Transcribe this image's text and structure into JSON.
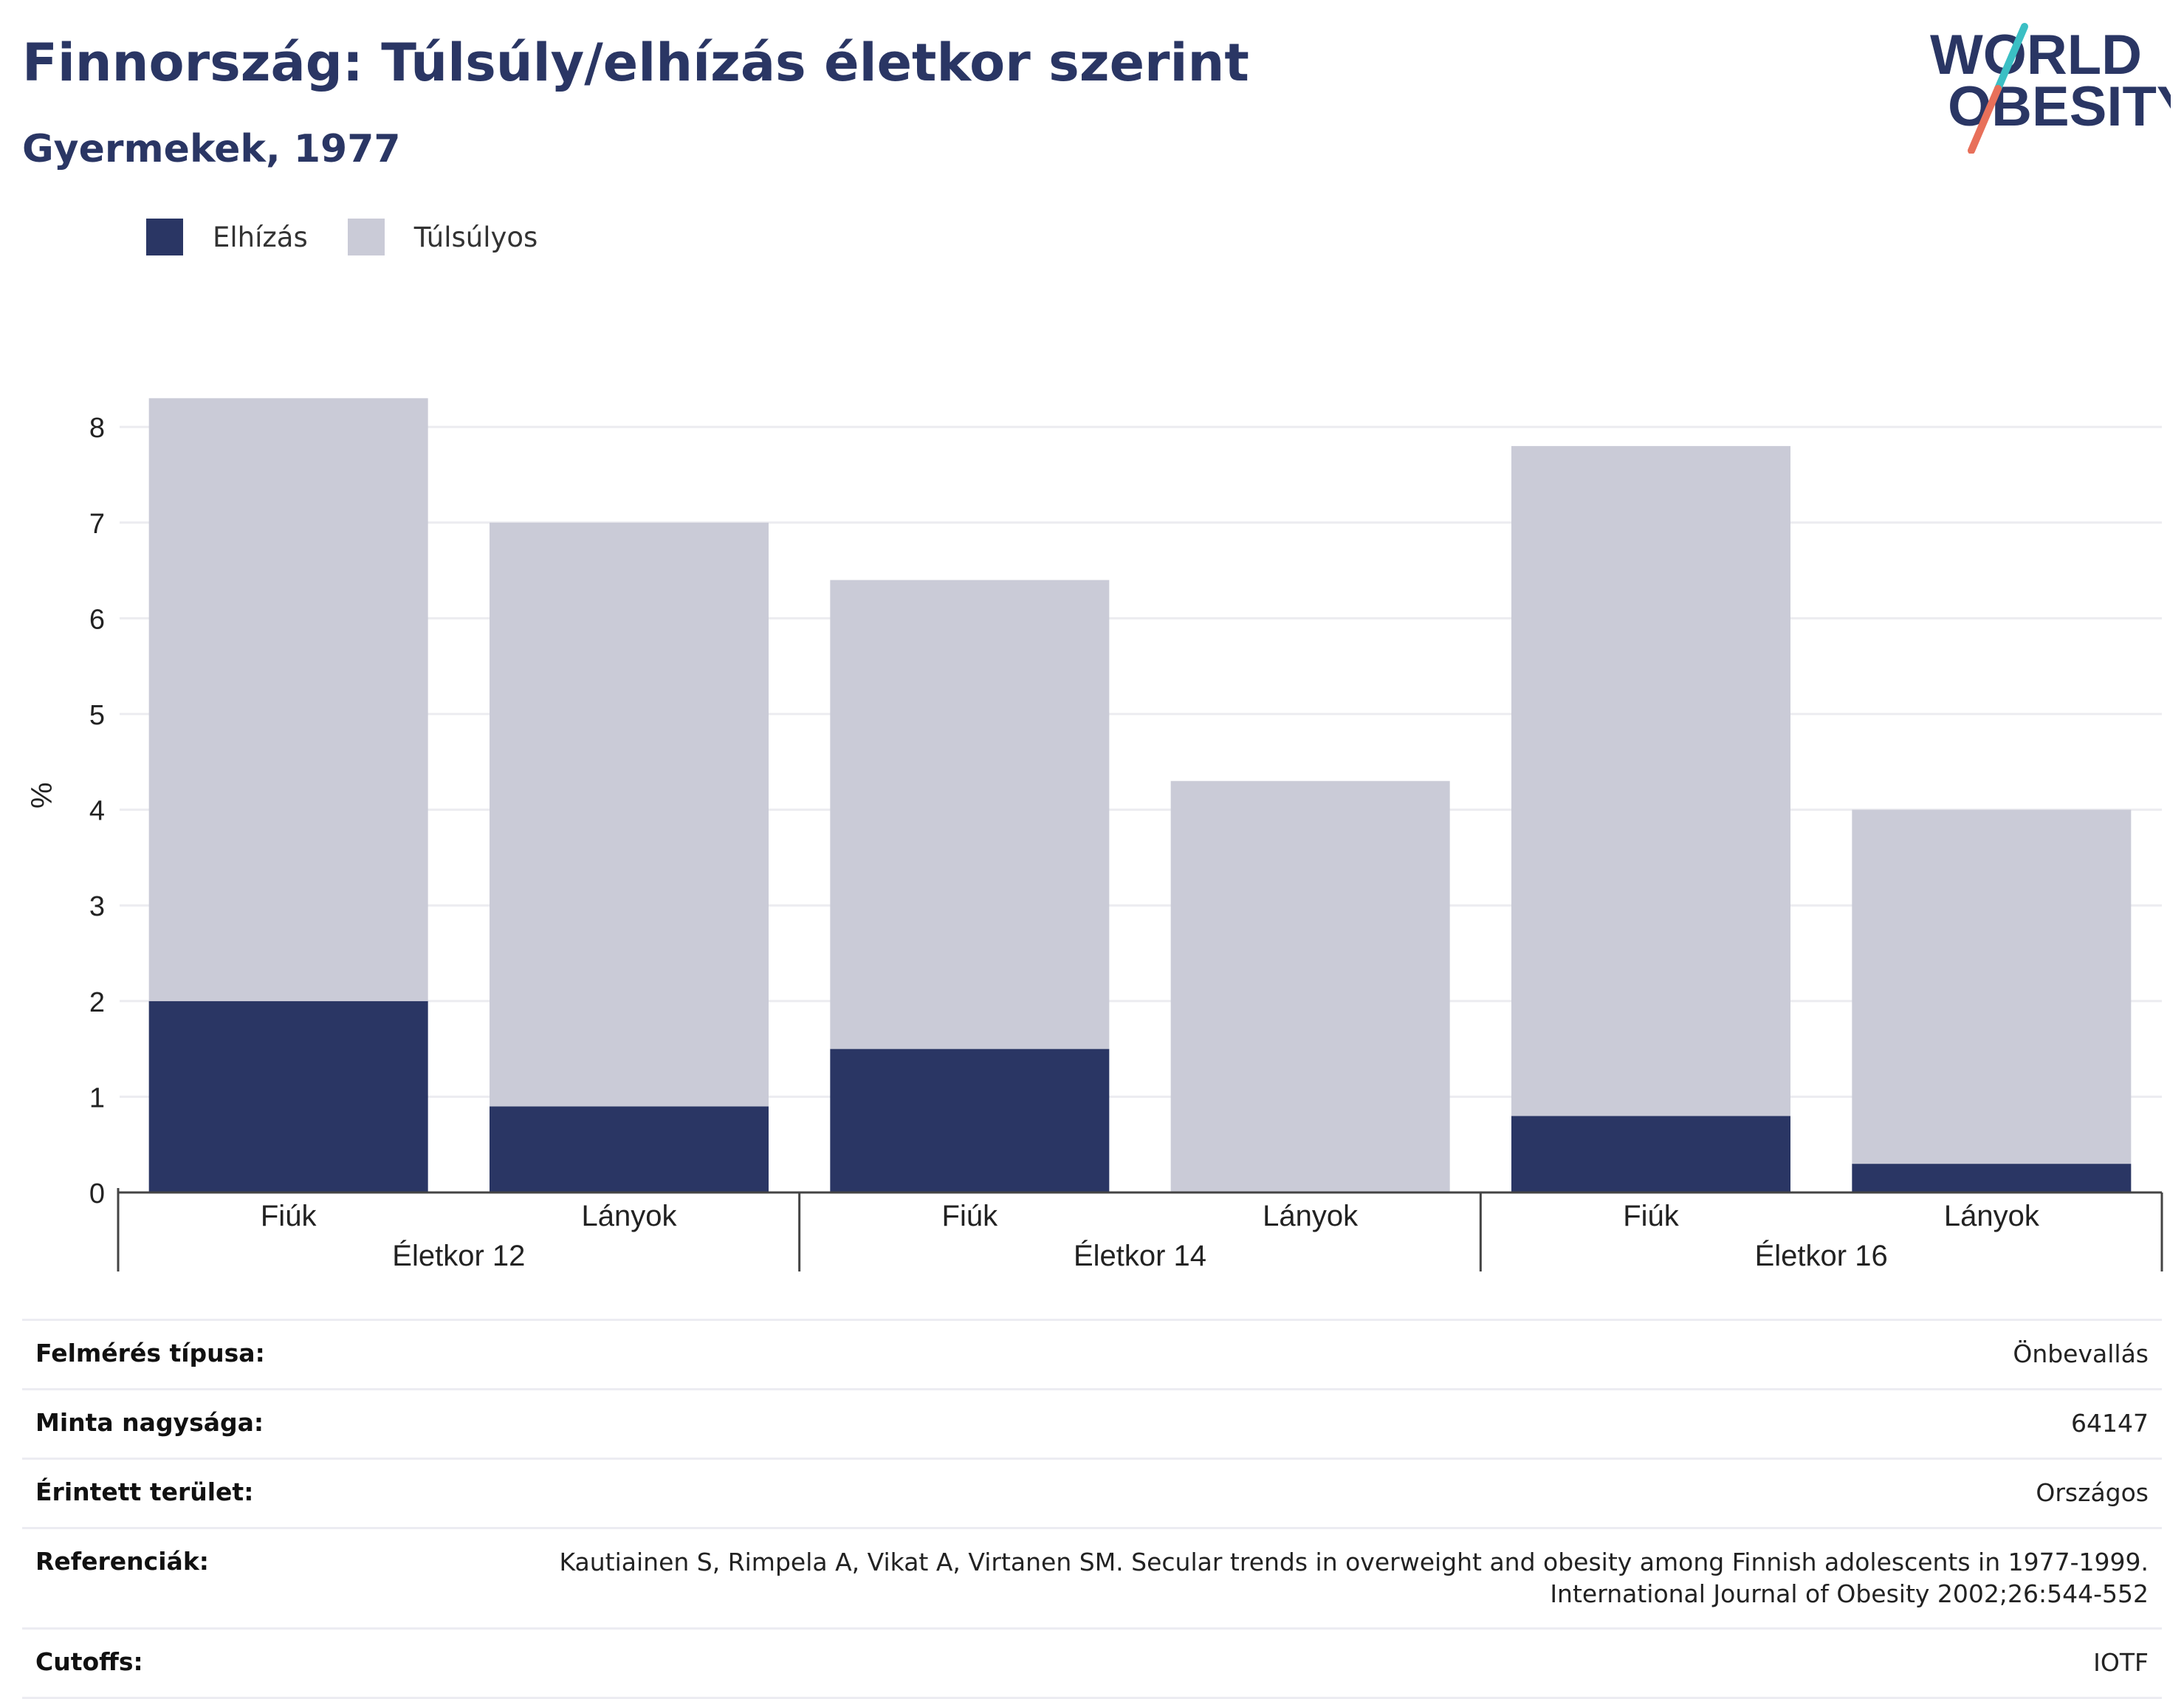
{
  "header": {
    "title": "Finnország: Túlsúly/elhízás életkor szerint",
    "subtitle": "Gyermekek, 1977"
  },
  "logo": {
    "line1": "WORLD",
    "line2": "OBESITY",
    "colors": [
      "#2a3664",
      "#3bbfc4",
      "#e8705a"
    ]
  },
  "legend": [
    {
      "label": "Elhízás",
      "color": "#2a3664"
    },
    {
      "label": "Túlsúlyos",
      "color": "#cacbd7"
    }
  ],
  "chart_data": {
    "type": "bar",
    "stacked": true,
    "ylabel": "%",
    "ylim": [
      0,
      8.3
    ],
    "yticks": [
      0,
      1,
      2,
      3,
      4,
      5,
      6,
      7,
      8
    ],
    "grid": true,
    "groups": [
      "Életkor 12",
      "Életkor 14",
      "Életkor 16"
    ],
    "categories": [
      "Fiúk",
      "Lányok",
      "Fiúk",
      "Lányok",
      "Fiúk",
      "Lányok"
    ],
    "category_group": [
      0,
      0,
      1,
      1,
      2,
      2
    ],
    "series": [
      {
        "name": "Elhízás",
        "color": "#2a3664",
        "values": [
          2.0,
          0.9,
          1.5,
          0.0,
          0.8,
          0.3
        ]
      },
      {
        "name": "Túlsúlyos",
        "color": "#cacbd7",
        "values": [
          6.3,
          6.1,
          4.9,
          4.3,
          7.0,
          3.7
        ]
      }
    ]
  },
  "info": [
    {
      "label": "Felmérés típusa:",
      "value": [
        "Önbevallás"
      ]
    },
    {
      "label": "Minta nagysága:",
      "value": [
        "64147"
      ]
    },
    {
      "label": "Érintett terület:",
      "value": [
        "Országos"
      ]
    },
    {
      "label": "Referenciák:",
      "value": [
        "Kautiainen S, Rimpela A, Vikat A, Virtanen SM. Secular trends in overweight and obesity among Finnish adolescents in 1977-1999.",
        "International Journal of Obesity 2002;26:544-552"
      ]
    },
    {
      "label": "Cutoffs:",
      "value": [
        "IOTF"
      ]
    }
  ]
}
